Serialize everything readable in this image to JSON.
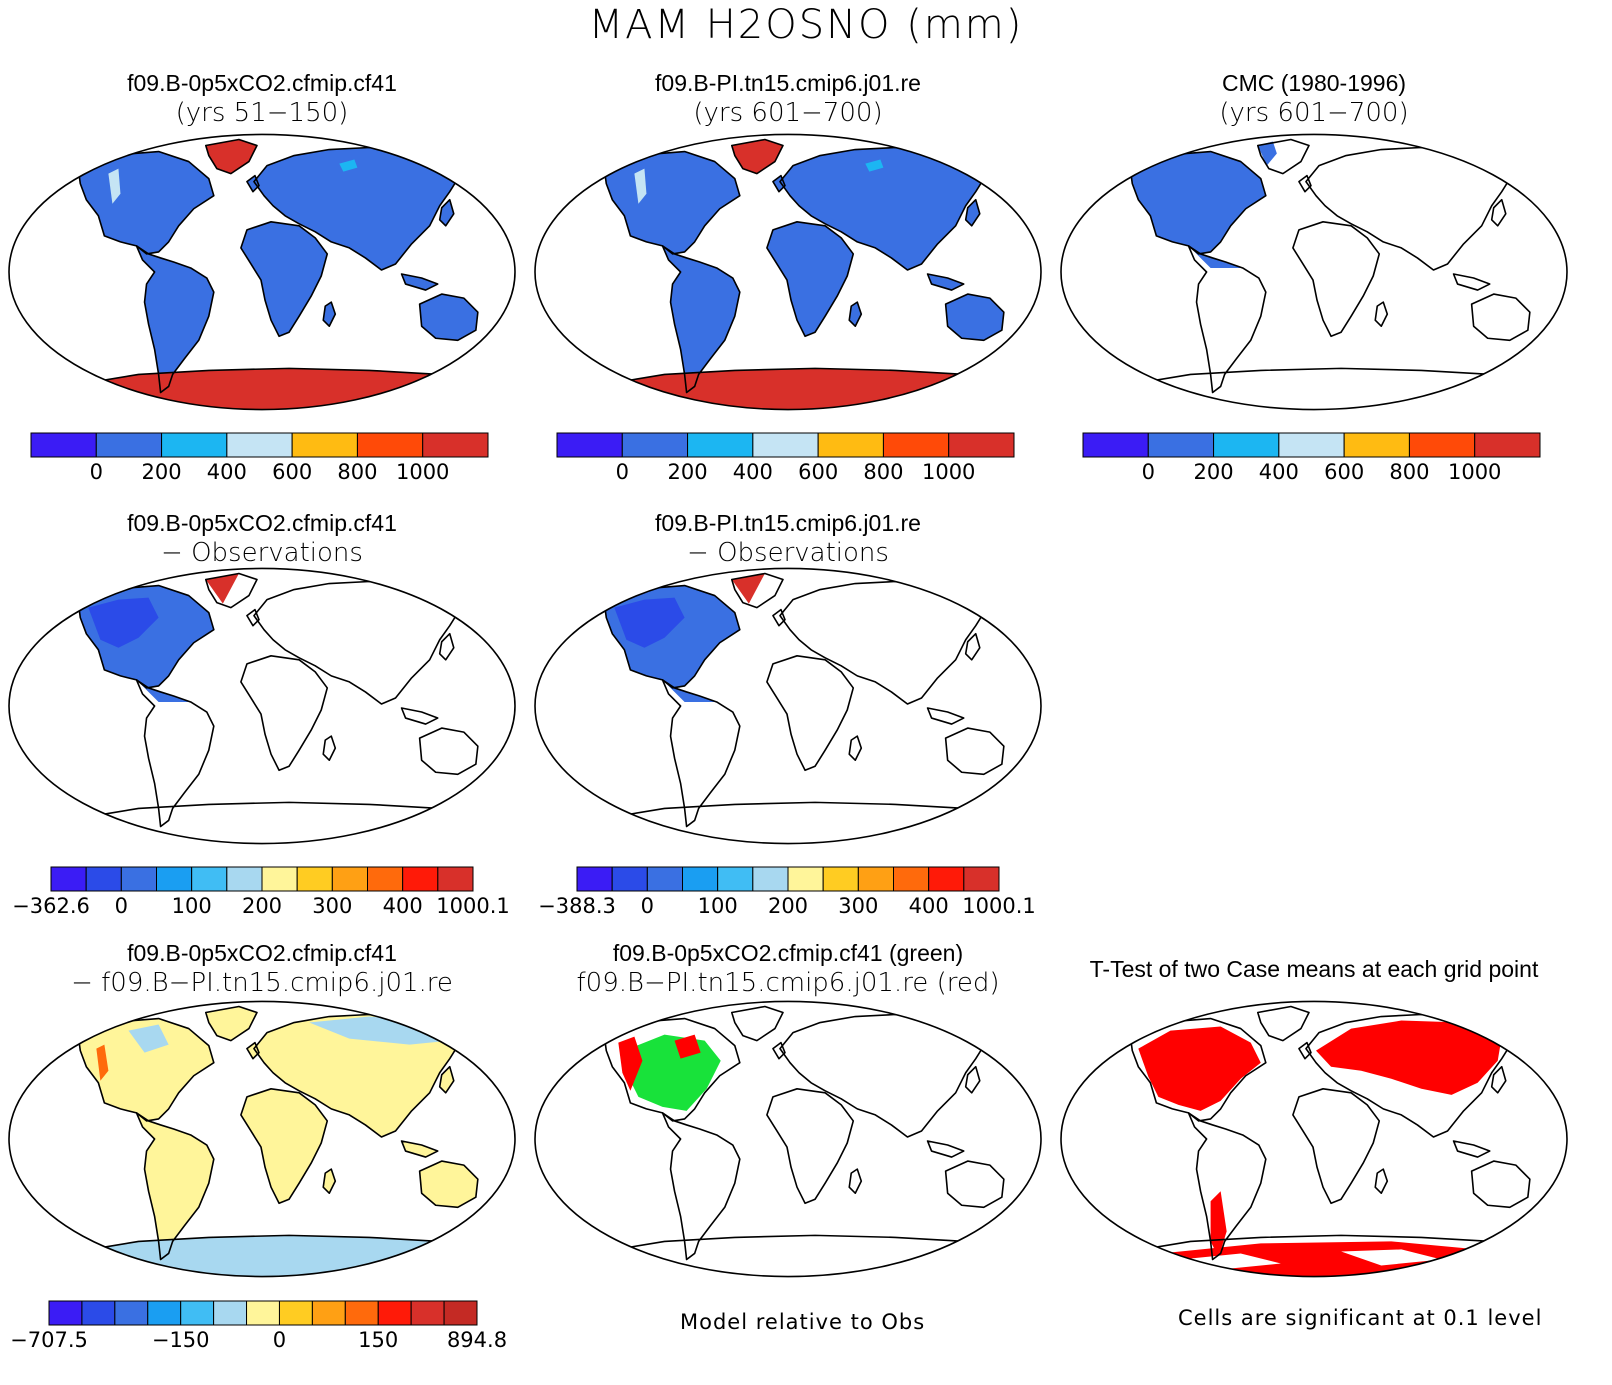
{
  "figure": {
    "title": "MAM H2OSNO (mm)"
  },
  "palettes": {
    "abs": [
      "#3b1cf5",
      "#3a70e2",
      "#1cb6f2",
      "#c5e4f4",
      "#ffbb12",
      "#ff4a08",
      "#d8302a"
    ],
    "diff": [
      "#3b1cf5",
      "#2b4be8",
      "#3a70e2",
      "#1a9ef2",
      "#40bdf4",
      "#a8d8f0",
      "#fff59a",
      "#ffcc22",
      "#ffa014",
      "#ff6a0c",
      "#ff1a08",
      "#d8302a"
    ],
    "d3": [
      "#3b1cf5",
      "#2b4be8",
      "#3a70e2",
      "#1a9ef2",
      "#40bdf4",
      "#a8d8f0",
      "#fff59a",
      "#ffcc22",
      "#ffa014",
      "#ff6a0c",
      "#ff1a08",
      "#d8302a",
      "#c42a24"
    ]
  },
  "panels": [
    {
      "id": "p11",
      "title": "f09.B-0p5xCO2.cfmip.cf41",
      "subtitle": "(yrs 51−150)",
      "fill": "abs-full",
      "colorbar": {
        "palette": "abs",
        "labels": [
          "0",
          "200",
          "400",
          "600",
          "800",
          "1000"
        ]
      }
    },
    {
      "id": "p12",
      "title": "f09.B-PI.tn15.cmip6.j01.re",
      "subtitle": "(yrs 601−700)",
      "fill": "abs-full",
      "colorbar": {
        "palette": "abs",
        "labels": [
          "0",
          "200",
          "400",
          "600",
          "800",
          "1000"
        ]
      }
    },
    {
      "id": "p13",
      "title": "CMC (1980-1996)",
      "subtitle": "(yrs 601−700)",
      "fill": "abs-na",
      "colorbar": {
        "palette": "abs",
        "labels": [
          "0",
          "200",
          "400",
          "600",
          "800",
          "1000"
        ]
      }
    },
    {
      "id": "p21",
      "title": "f09.B-0p5xCO2.cfmip.cf41",
      "subtitle": "− Observations",
      "fill": "diff-na",
      "colorbar": {
        "palette": "diff",
        "labels": [
          "−362.6",
          "0",
          "100",
          "200",
          "300",
          "400",
          "1000.1"
        ]
      }
    },
    {
      "id": "p22",
      "title": "f09.B-PI.tn15.cmip6.j01.re",
      "subtitle": "− Observations",
      "fill": "diff-na",
      "colorbar": {
        "palette": "diff",
        "labels": [
          "−388.3",
          "0",
          "100",
          "200",
          "300",
          "400",
          "1000.1"
        ]
      }
    },
    {
      "id": "p31",
      "title": "f09.B-0p5xCO2.cfmip.cf41",
      "subtitle": "− f09.B−PI.tn15.cmip6.j01.re",
      "fill": "case-diff",
      "colorbar": {
        "palette": "d3",
        "labels": [
          "−707.5",
          "−150",
          "0",
          "150",
          "894.8"
        ]
      }
    },
    {
      "id": "p32",
      "title": "f09.B-0p5xCO2.cfmip.cf41 (green)",
      "subtitle": "f09.B−PI.tn15.cmip6.j01.re (red)",
      "fill": "green-red",
      "footnote": "Model relative to Obs"
    },
    {
      "id": "p33",
      "title": "T-Test of two Case means at each grid point",
      "subtitle": "",
      "fill": "ttest",
      "footnote": "Cells are significant at 0.1 level"
    }
  ]
}
